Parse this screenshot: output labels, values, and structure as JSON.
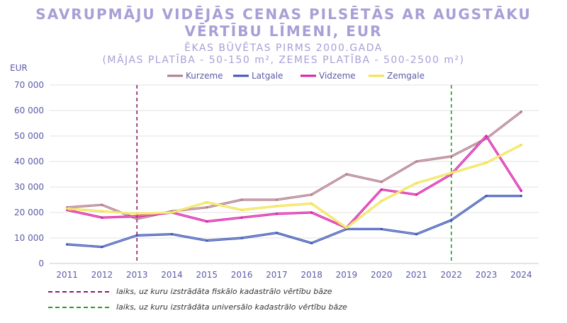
{
  "chart_data": {
    "type": "line",
    "title_line1": "SAVRUPMĀJU VIDĒJĀS CENAS PILSĒTĀS AR AUGSTĀKU",
    "title_line2": "VĒRTĪBU LĪMENI, EUR",
    "subtitle_line1": "ĒKAS BŪVĒTAS PIRMS 2000.GADA",
    "subtitle_line2": "(MĀJAS PLATĪBA - 50-150 m², ZEMES PLATĪBA - 500-2500 m²)",
    "ylabel": "EUR",
    "ylim": [
      0,
      70000
    ],
    "yticks": [
      0,
      10000,
      20000,
      30000,
      40000,
      50000,
      60000,
      70000
    ],
    "ytick_labels": [
      "0",
      "10 000",
      "20 000",
      "30 000",
      "40 000",
      "50 000",
      "60 000",
      "70 000"
    ],
    "categories": [
      "2011",
      "2012",
      "2013",
      "2014",
      "2015",
      "2016",
      "2017",
      "2018",
      "2019",
      "2020",
      "2021",
      "2022",
      "2023",
      "2024"
    ],
    "legend_position": "top",
    "grid": "horizontal",
    "series": [
      {
        "name": "Kurzeme",
        "color": "#b07a8c",
        "values": [
          22000,
          23000,
          17500,
          20500,
          22000,
          25000,
          25000,
          27000,
          35000,
          32000,
          40000,
          42000,
          49000,
          59500
        ]
      },
      {
        "name": "Latgale",
        "color": "#3b55b5",
        "values": [
          7500,
          6500,
          11000,
          11500,
          9000,
          10000,
          12000,
          8000,
          13500,
          13500,
          11500,
          17000,
          26500,
          26500
        ]
      },
      {
        "name": "Vidzeme",
        "color": "#d81ba8",
        "values": [
          21000,
          18000,
          18500,
          20000,
          16500,
          18000,
          19500,
          20000,
          14000,
          29000,
          27000,
          35000,
          50000,
          28500
        ]
      },
      {
        "name": "Zemgale",
        "color": "#f2e24a",
        "values": [
          21500,
          20500,
          19500,
          20000,
          24000,
          21000,
          22500,
          23500,
          14000,
          24500,
          31500,
          35500,
          39500,
          46500
        ]
      }
    ],
    "reference_lines": [
      {
        "x": "2013",
        "color": "#8b1a6b",
        "label": "laiks, uz kuru izstrādāta fiskālo kadastrālo vērtību bāze"
      },
      {
        "x": "2022",
        "color": "#22a022",
        "label": "laiks, uz kuru izstrādāta universālo kadastrālo vērtību bāze"
      }
    ]
  }
}
